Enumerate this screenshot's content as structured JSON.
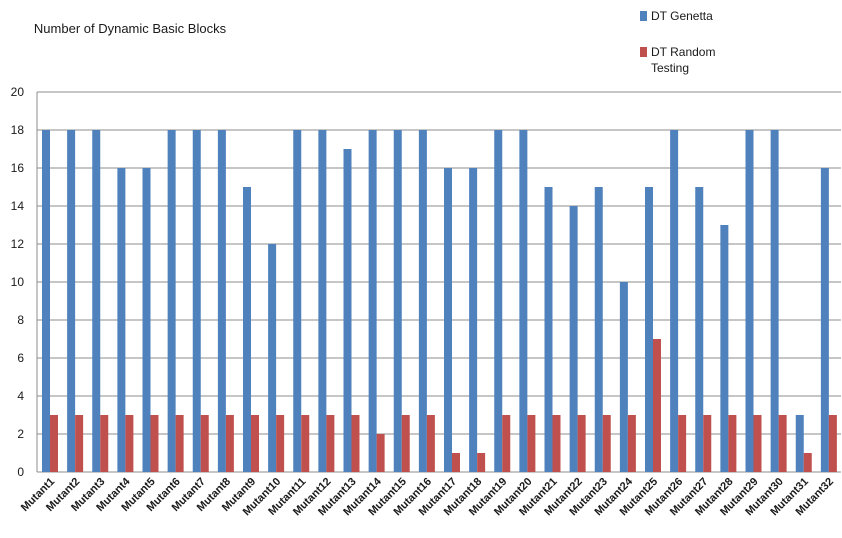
{
  "chart_data": {
    "type": "bar",
    "title": "Number of Dynamic Basic Blocks",
    "xlabel": "",
    "ylabel": "",
    "ylim": [
      0,
      20
    ],
    "yticks": [
      0,
      2,
      4,
      6,
      8,
      10,
      12,
      14,
      16,
      18,
      20
    ],
    "grid": true,
    "legend_position": "top-right",
    "categories": [
      "Mutant1",
      "Mutant2",
      "Mutant3",
      "Mutant4",
      "Mutant5",
      "Mutant6",
      "Mutant7",
      "Mutant8",
      "Mutant9",
      "Mutant10",
      "Mutant11",
      "Mutant12",
      "Mutant13",
      "Mutant14",
      "Mutant15",
      "Mutant16",
      "Mutant17",
      "Mutant18",
      "Mutant19",
      "Mutant20",
      "Mutant21",
      "Mutant22",
      "Mutant23",
      "Mutant24",
      "Mutant25",
      "Mutant26",
      "Mutant27",
      "Mutant28",
      "Mutant29",
      "Mutant30",
      "Mutant31",
      "Mutant32"
    ],
    "series": [
      {
        "name": "DT Genetta",
        "color": "#4f81bd",
        "values": [
          18,
          18,
          18,
          16,
          16,
          18,
          18,
          18,
          15,
          12,
          18,
          18,
          17,
          18,
          18,
          18,
          16,
          16,
          18,
          18,
          15,
          14,
          15,
          10,
          15,
          18,
          15,
          13,
          18,
          18,
          3,
          16
        ]
      },
      {
        "name": "DT Random Testing",
        "color": "#c0504d",
        "values": [
          3,
          3,
          3,
          3,
          3,
          3,
          3,
          3,
          3,
          3,
          3,
          3,
          3,
          2,
          3,
          3,
          1,
          1,
          3,
          3,
          3,
          3,
          3,
          3,
          7,
          3,
          3,
          3,
          3,
          3,
          1,
          3
        ]
      }
    ]
  }
}
